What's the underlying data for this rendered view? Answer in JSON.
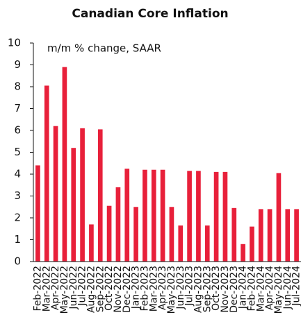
{
  "chart_data": {
    "type": "bar",
    "title": "Canadian Core Inflation",
    "annotation": "m/m % change, SAAR",
    "categories": [
      "Feb-2022",
      "Mar-2022",
      "Apr-2022",
      "May-2022",
      "Jun-2022",
      "Jul-2022",
      "Aug-2022",
      "Sep-2022",
      "Oct-2022",
      "Nov-2022",
      "Dec-2022",
      "Jan-2023",
      "Feb-2023",
      "Mar-2023",
      "Apr-2023",
      "May-2023",
      "Jun-2023",
      "Jul-2023",
      "Aug-2023",
      "Sep-2023",
      "Oct-2023",
      "Nov-2023",
      "Dec-2023",
      "Jan-2024",
      "Feb-2024",
      "Mar-2024",
      "Apr-2024",
      "May-2024",
      "Jun-2024",
      "Jul-2024"
    ],
    "values": [
      4.4,
      8.05,
      6.2,
      8.9,
      5.2,
      6.1,
      1.7,
      6.05,
      2.55,
      3.4,
      4.25,
      2.5,
      4.2,
      4.2,
      4.2,
      2.5,
      1.65,
      4.15,
      4.15,
      1.65,
      4.1,
      4.1,
      2.45,
      0.8,
      1.6,
      2.4,
      2.4,
      4.05,
      2.4,
      2.4
    ],
    "color": "#e8203a",
    "ylim": [
      0,
      10
    ],
    "yticks": [
      0,
      1,
      2,
      3,
      4,
      5,
      6,
      7,
      8,
      9,
      10
    ],
    "grid": false
  }
}
